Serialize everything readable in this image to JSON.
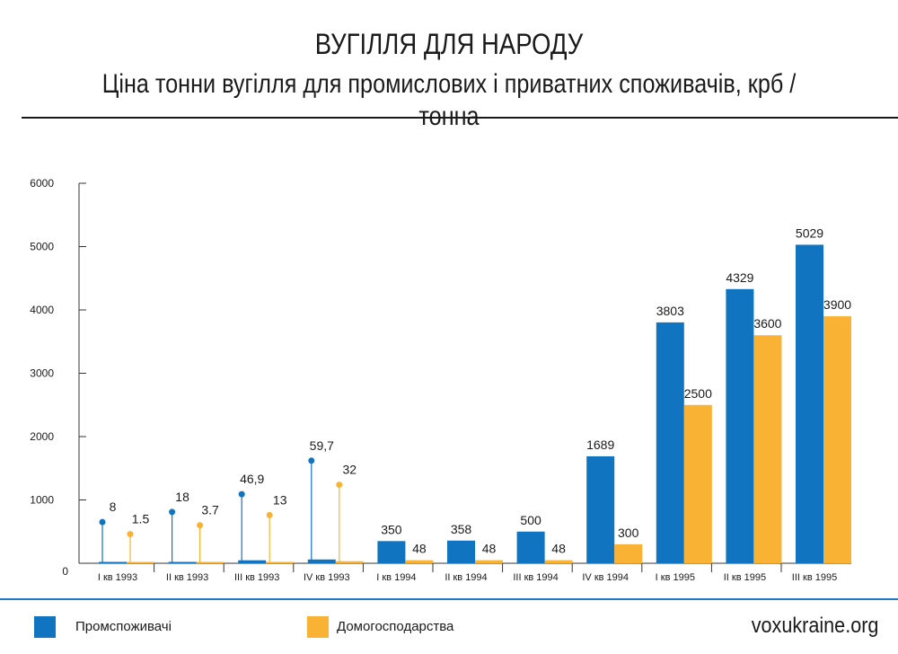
{
  "header": {
    "title": "ВУГІЛЛЯ ДЛЯ НАРОДУ",
    "subtitle": "Ціна тонни вугілля для промислових і приватних споживачів, крб / тонна"
  },
  "footer": {
    "source": "voxukraine.org"
  },
  "colors": {
    "industry": "#1074c0",
    "household": "#f9b233",
    "axis": "#333333",
    "rule": "#1f78c4"
  },
  "chart_data": {
    "type": "bar",
    "title": "ВУГІЛЛЯ ДЛЯ НАРОДУ",
    "subtitle": "Ціна тонни вугілля для промислових і приватних споживачів, крб / тонна",
    "categories": [
      "I кв 1993",
      "II кв 1993",
      "III кв 1993",
      "IV кв 1993",
      "I кв 1994",
      "II кв 1994",
      "III кв 1994",
      "IV кв 1994",
      "I кв 1995",
      "II кв 1995",
      "III кв 1995"
    ],
    "series": [
      {
        "name": "Промспоживачі",
        "color": "#1074c0",
        "values": [
          8,
          18,
          46.9,
          59.7,
          350,
          358,
          500,
          1689,
          3803,
          4329,
          5029
        ],
        "labels": [
          "8",
          "18",
          "46,9",
          "59,7",
          "350",
          "358",
          "500",
          "1689",
          "3803",
          "4329",
          "5029"
        ],
        "marker_levels": [
          650,
          810,
          1090,
          1620,
          null,
          null,
          null,
          null,
          null,
          null,
          null
        ]
      },
      {
        "name": "Домогосподарства",
        "color": "#f9b233",
        "values": [
          1.5,
          3.7,
          13,
          32,
          48,
          48,
          48,
          300,
          2500,
          3600,
          3900
        ],
        "labels": [
          "1.5",
          "3.7",
          "13",
          "32",
          "48",
          "48",
          "48",
          "300",
          "2500",
          "3600",
          "3900"
        ],
        "marker_levels": [
          460,
          600,
          760,
          1240,
          null,
          null,
          null,
          null,
          null,
          null,
          null
        ]
      }
    ],
    "yticks": [
      0,
      1000,
      2000,
      3000,
      4000,
      5000,
      6000
    ],
    "ylim": [
      0,
      6000
    ],
    "grid": false,
    "legend": "bottom"
  }
}
